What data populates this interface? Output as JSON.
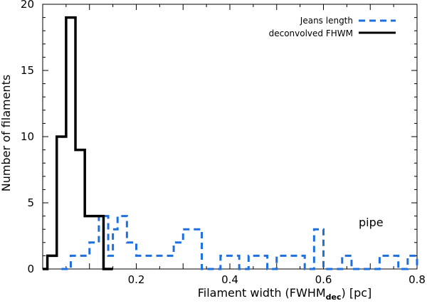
{
  "chart_data": {
    "type": "histogram",
    "xlabel_main": "Filament width (FWHM",
    "xlabel_sub": "dec",
    "xlabel_end": ") [pc]",
    "ylabel": "Number of filaments",
    "xlim": [
      0.0,
      0.8
    ],
    "ylim": [
      0,
      20
    ],
    "xticks": [
      0.2,
      0.4,
      0.6,
      0.8
    ],
    "xtick_labels": [
      "0.2",
      "0.4",
      "0.6",
      "0.8"
    ],
    "yticks": [
      0,
      5,
      10,
      15,
      20
    ],
    "ytick_labels": [
      "0",
      "5",
      "10",
      "15",
      "20"
    ],
    "annotation": "pipe",
    "legend_position": "top-right",
    "series": [
      {
        "name": "Jeans length",
        "style": "dashed",
        "color": "#1e6fe0",
        "bin_edges": [
          0.04,
          0.06,
          0.08,
          0.1,
          0.12,
          0.14,
          0.15,
          0.16,
          0.18,
          0.2,
          0.22,
          0.24,
          0.26,
          0.28,
          0.3,
          0.32,
          0.34,
          0.36,
          0.38,
          0.4,
          0.42,
          0.44,
          0.46,
          0.48,
          0.5,
          0.52,
          0.54,
          0.56,
          0.58,
          0.6,
          0.62,
          0.64,
          0.66,
          0.68,
          0.7,
          0.72,
          0.74,
          0.76,
          0.78,
          0.8
        ],
        "counts": [
          0,
          1,
          1,
          2,
          4,
          1,
          3,
          4,
          2,
          1,
          1,
          1,
          1,
          2,
          3,
          3,
          0,
          0,
          1,
          1,
          0,
          1,
          1,
          0,
          1,
          1,
          1,
          0,
          3,
          0,
          0,
          1,
          0,
          0,
          0,
          1,
          1,
          0,
          1
        ]
      },
      {
        "name": "deconvolved FHWM",
        "style": "solid",
        "color": "#000000",
        "bin_edges": [
          0.0,
          0.01,
          0.03,
          0.05,
          0.07,
          0.09,
          0.11,
          0.13,
          0.15
        ],
        "counts": [
          0,
          1,
          10,
          19,
          9,
          4,
          4,
          0
        ]
      }
    ]
  }
}
